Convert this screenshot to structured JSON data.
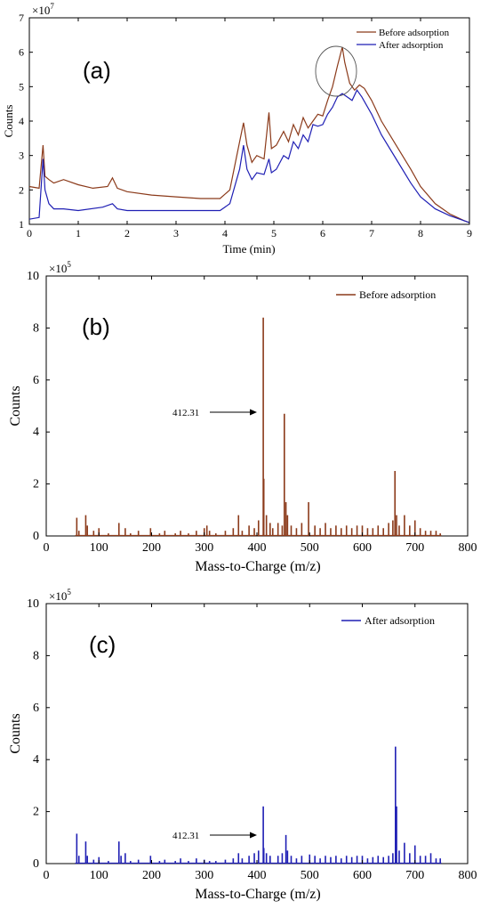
{
  "colors": {
    "before": "#8B3A1A",
    "after": "#1F1FB4"
  },
  "chart_data": [
    {
      "id": "a",
      "type": "line",
      "panel_label": "(a)",
      "xlabel": "Time (min)",
      "ylabel": "Counts",
      "y_exponent_label": "×10",
      "y_exponent": "7",
      "xlim": [
        0,
        9
      ],
      "ylim": [
        1,
        7
      ],
      "xticks": [
        "0",
        "1",
        "2",
        "3",
        "4",
        "5",
        "6",
        "7",
        "8",
        "9"
      ],
      "yticks": [
        "1",
        "2",
        "3",
        "4",
        "5",
        "6",
        "7"
      ],
      "legend": {
        "placement": "top-right",
        "entries": [
          "Before adsorption",
          "After adsorption"
        ]
      },
      "annotation": "circle around peak near 6.4 min",
      "series": [
        {
          "name": "Before adsorption",
          "x": [
            0,
            0.2,
            0.28,
            0.32,
            0.4,
            0.5,
            0.7,
            1.0,
            1.3,
            1.6,
            1.7,
            1.8,
            2.0,
            2.5,
            3.0,
            3.5,
            3.9,
            4.1,
            4.3,
            4.38,
            4.45,
            4.55,
            4.65,
            4.8,
            4.9,
            4.95,
            5.05,
            5.2,
            5.3,
            5.4,
            5.5,
            5.6,
            5.7,
            5.8,
            5.9,
            6.0,
            6.1,
            6.2,
            6.3,
            6.4,
            6.45,
            6.55,
            6.65,
            6.75,
            6.85,
            7.0,
            7.2,
            7.5,
            7.8,
            8.0,
            8.3,
            8.6,
            8.9,
            9.0
          ],
          "y": [
            2.1,
            2.05,
            3.3,
            2.4,
            2.3,
            2.2,
            2.3,
            2.15,
            2.05,
            2.1,
            2.35,
            2.05,
            1.95,
            1.85,
            1.8,
            1.75,
            1.75,
            2.0,
            3.4,
            3.95,
            3.3,
            2.8,
            3.0,
            2.9,
            4.25,
            3.2,
            3.3,
            3.7,
            3.4,
            3.9,
            3.6,
            4.1,
            3.8,
            4.0,
            4.2,
            4.15,
            4.6,
            5.0,
            5.6,
            6.15,
            5.7,
            5.1,
            4.9,
            5.05,
            4.95,
            4.6,
            4.0,
            3.3,
            2.6,
            2.1,
            1.6,
            1.3,
            1.1,
            1.05
          ]
        },
        {
          "name": "After adsorption",
          "x": [
            0,
            0.2,
            0.28,
            0.32,
            0.4,
            0.5,
            0.7,
            1.0,
            1.5,
            1.7,
            1.8,
            2.0,
            2.5,
            3.0,
            3.5,
            3.9,
            4.1,
            4.3,
            4.38,
            4.45,
            4.55,
            4.65,
            4.8,
            4.9,
            4.95,
            5.05,
            5.2,
            5.3,
            5.4,
            5.5,
            5.6,
            5.7,
            5.8,
            5.9,
            6.0,
            6.1,
            6.2,
            6.3,
            6.4,
            6.5,
            6.6,
            6.7,
            6.8,
            7.0,
            7.2,
            7.5,
            7.8,
            8.0,
            8.3,
            8.6,
            8.9,
            9.0
          ],
          "y": [
            1.15,
            1.2,
            2.9,
            2.0,
            1.6,
            1.45,
            1.45,
            1.4,
            1.5,
            1.6,
            1.45,
            1.4,
            1.4,
            1.4,
            1.4,
            1.4,
            1.6,
            2.6,
            3.3,
            2.6,
            2.3,
            2.5,
            2.45,
            2.9,
            2.5,
            2.6,
            3.0,
            2.9,
            3.4,
            3.2,
            3.6,
            3.4,
            3.9,
            3.85,
            3.9,
            4.2,
            4.4,
            4.7,
            4.8,
            4.7,
            4.6,
            4.9,
            4.7,
            4.2,
            3.6,
            2.9,
            2.2,
            1.8,
            1.45,
            1.25,
            1.1,
            1.05
          ]
        }
      ]
    },
    {
      "id": "b",
      "type": "bar",
      "panel_label": "(b)",
      "xlabel": "Mass-to-Charge (m/z)",
      "ylabel": "Counts",
      "y_exponent_label": "×10",
      "y_exponent": "5",
      "xlim": [
        0,
        800
      ],
      "ylim": [
        0,
        10
      ],
      "xticks": [
        "0",
        "100",
        "200",
        "300",
        "400",
        "500",
        "600",
        "700",
        "800"
      ],
      "yticks": [
        "0",
        "2",
        "4",
        "6",
        "8",
        "10"
      ],
      "legend": {
        "placement": "top-right",
        "entries": [
          "Before adsorption"
        ]
      },
      "annotation_text": "412.31",
      "annotation_target": {
        "x": 412.31,
        "y": 4.7
      },
      "series": [
        {
          "name": "Before adsorption",
          "x": [
            58,
            62,
            75,
            78,
            90,
            100,
            118,
            138,
            150,
            160,
            175,
            198,
            215,
            225,
            245,
            255,
            270,
            285,
            300,
            305,
            310,
            322,
            340,
            355,
            365,
            372,
            385,
            395,
            403,
            412,
            413,
            418,
            425,
            430,
            440,
            448,
            452,
            455,
            458,
            465,
            475,
            485,
            498,
            510,
            520,
            530,
            540,
            550,
            560,
            570,
            580,
            590,
            600,
            610,
            620,
            630,
            640,
            650,
            658,
            662,
            665,
            670,
            680,
            690,
            700,
            710,
            720,
            730,
            740,
            748
          ],
          "y": [
            0.7,
            0.2,
            0.8,
            0.4,
            0.2,
            0.3,
            0.1,
            0.5,
            0.3,
            0.1,
            0.2,
            0.3,
            0.1,
            0.2,
            0.1,
            0.2,
            0.1,
            0.2,
            0.3,
            0.4,
            0.2,
            0.1,
            0.2,
            0.3,
            0.8,
            0.2,
            0.4,
            0.3,
            0.6,
            8.4,
            2.2,
            0.8,
            0.5,
            0.3,
            0.5,
            0.4,
            4.7,
            1.3,
            0.8,
            0.4,
            0.3,
            0.5,
            1.3,
            0.4,
            0.3,
            0.5,
            0.3,
            0.4,
            0.3,
            0.4,
            0.3,
            0.4,
            0.4,
            0.3,
            0.3,
            0.4,
            0.3,
            0.5,
            0.6,
            2.5,
            0.8,
            0.4,
            0.8,
            0.4,
            0.6,
            0.3,
            0.2,
            0.2,
            0.2,
            0.1
          ]
        }
      ]
    },
    {
      "id": "c",
      "type": "bar",
      "panel_label": "(c)",
      "xlabel": "Mass-to-Charge (m/z)",
      "ylabel": "Counts",
      "y_exponent_label": "×10",
      "y_exponent": "5",
      "xlim": [
        0,
        800
      ],
      "ylim": [
        0,
        10
      ],
      "xticks": [
        "0",
        "100",
        "200",
        "300",
        "400",
        "500",
        "600",
        "700",
        "800"
      ],
      "yticks": [
        "0",
        "2",
        "4",
        "6",
        "8",
        "10"
      ],
      "legend": {
        "placement": "top-right",
        "entries": [
          "After adsorption"
        ]
      },
      "annotation_text": "412.31",
      "annotation_target": {
        "x": 412.31,
        "y": 1.1
      },
      "series": [
        {
          "name": "After adsorption",
          "x": [
            58,
            62,
            75,
            78,
            90,
            100,
            118,
            138,
            142,
            150,
            160,
            175,
            198,
            215,
            225,
            245,
            255,
            270,
            285,
            300,
            310,
            322,
            340,
            355,
            365,
            372,
            385,
            395,
            403,
            412,
            413,
            418,
            425,
            440,
            448,
            455,
            458,
            465,
            475,
            485,
            500,
            510,
            520,
            530,
            540,
            550,
            560,
            570,
            580,
            590,
            600,
            610,
            620,
            630,
            640,
            650,
            658,
            663,
            665,
            670,
            680,
            690,
            700,
            710,
            720,
            730,
            740,
            748
          ],
          "y": [
            1.15,
            0.3,
            0.85,
            0.3,
            0.15,
            0.25,
            0.1,
            0.85,
            0.3,
            0.4,
            0.1,
            0.15,
            0.3,
            0.1,
            0.15,
            0.1,
            0.2,
            0.1,
            0.2,
            0.15,
            0.1,
            0.1,
            0.15,
            0.2,
            0.4,
            0.2,
            0.3,
            0.4,
            0.5,
            2.2,
            0.6,
            0.4,
            0.3,
            0.3,
            0.4,
            1.1,
            0.5,
            0.3,
            0.2,
            0.3,
            0.35,
            0.3,
            0.2,
            0.3,
            0.25,
            0.3,
            0.2,
            0.3,
            0.25,
            0.3,
            0.3,
            0.2,
            0.25,
            0.3,
            0.25,
            0.3,
            0.4,
            4.5,
            2.2,
            0.5,
            0.8,
            0.4,
            0.7,
            0.3,
            0.3,
            0.4,
            0.2,
            0.2
          ]
        }
      ]
    }
  ]
}
